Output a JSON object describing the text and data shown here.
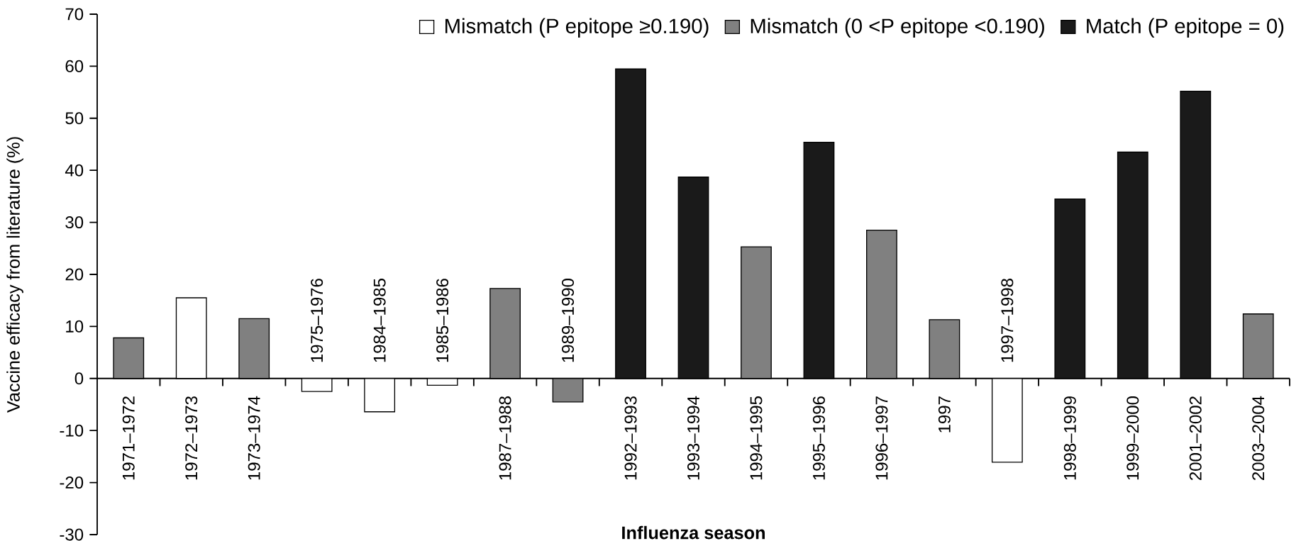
{
  "chart_data": {
    "type": "bar",
    "xlabel": "Influenza season",
    "ylabel": "Vaccine efficacy from literature (%)",
    "categories": [
      "1971–1972",
      "1972–1973",
      "1973–1974",
      "1975–1976",
      "1984–1985",
      "1985–1986",
      "1987–1988",
      "1989–1990",
      "1992–1993",
      "1993–1994",
      "1994–1995",
      "1995–1996",
      "1996–1997",
      "1997",
      "1997–1998",
      "1998–1999",
      "1999–2000",
      "2001–2002",
      "2003–2004"
    ],
    "series": [
      {
        "name": "Mismatch (P epitope ≥0.190)",
        "color": "#ffffff",
        "values": [
          null,
          15.5,
          null,
          -2.5,
          -6.4,
          -1.3,
          null,
          null,
          null,
          null,
          null,
          null,
          null,
          null,
          -16.1,
          null,
          null,
          null,
          null
        ]
      },
      {
        "name": "Mismatch (0 <P epitope <0.190)",
        "color": "#808080",
        "values": [
          7.8,
          null,
          11.5,
          null,
          null,
          null,
          17.3,
          -4.5,
          null,
          null,
          25.3,
          null,
          28.5,
          11.3,
          null,
          null,
          null,
          null,
          12.4
        ]
      },
      {
        "name": "Match (P epitope = 0)",
        "color": "#1a1a1a",
        "values": [
          null,
          null,
          null,
          null,
          null,
          null,
          null,
          null,
          59.5,
          38.7,
          null,
          45.4,
          null,
          null,
          null,
          34.5,
          43.5,
          55.2,
          null
        ]
      }
    ],
    "ylim": [
      -30,
      70
    ],
    "yticks": [
      -30,
      -20,
      -10,
      0,
      10,
      20,
      30,
      40,
      50,
      60,
      70
    ],
    "legend": "top"
  }
}
